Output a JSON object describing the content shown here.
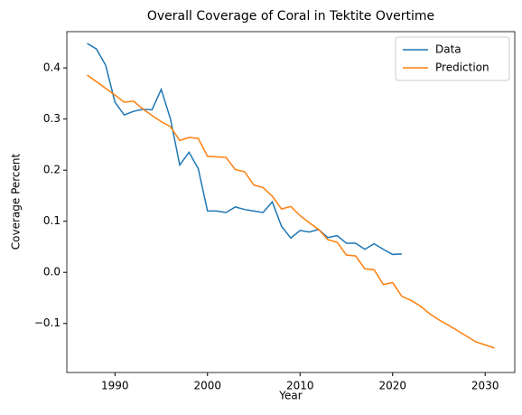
{
  "chart_data": {
    "type": "line",
    "title": "Overall Coverage of Coral in Tektite Overtime",
    "x_label": "Year",
    "y_label": "Coverage Percent",
    "series": [
      {
        "name": "Data",
        "color": "#1f77b4",
        "x": [
          1987,
          1988,
          1989,
          1990,
          1991,
          1992,
          1993,
          1994,
          1995,
          1996,
          1997,
          1998,
          1999,
          2000,
          2001,
          2002,
          2003,
          2004,
          2005,
          2006,
          2007,
          2008,
          2009,
          2010,
          2011,
          2012,
          2013,
          2014,
          2015,
          2016,
          2017,
          2018,
          2019,
          2020,
          2021
        ],
        "values": [
          0.448,
          0.437,
          0.405,
          0.333,
          0.308,
          0.315,
          0.319,
          0.318,
          0.358,
          0.3,
          0.21,
          0.235,
          0.203,
          0.12,
          0.12,
          0.117,
          0.128,
          0.123,
          0.12,
          0.117,
          0.138,
          0.09,
          0.067,
          0.082,
          0.079,
          0.084,
          0.068,
          0.072,
          0.057,
          0.057,
          0.045,
          0.056,
          0.045,
          0.035,
          0.036
        ]
      },
      {
        "name": "Prediction",
        "color": "#ff7f0e",
        "x": [
          1987,
          1988,
          1989,
          1990,
          1991,
          1992,
          1993,
          1994,
          1995,
          1996,
          1997,
          1998,
          1999,
          2000,
          2001,
          2002,
          2003,
          2004,
          2005,
          2006,
          2007,
          2008,
          2009,
          2010,
          2011,
          2012,
          2013,
          2014,
          2015,
          2016,
          2017,
          2018,
          2019,
          2020,
          2021,
          2022,
          2023,
          2024,
          2025,
          2026,
          2027,
          2028,
          2029,
          2030,
          2031
        ],
        "values": [
          0.386,
          0.373,
          0.36,
          0.347,
          0.333,
          0.335,
          0.32,
          0.307,
          0.295,
          0.285,
          0.258,
          0.264,
          0.262,
          0.227,
          0.226,
          0.225,
          0.201,
          0.197,
          0.171,
          0.166,
          0.149,
          0.124,
          0.129,
          0.111,
          0.097,
          0.084,
          0.064,
          0.059,
          0.034,
          0.032,
          0.007,
          0.005,
          -0.024,
          -0.02,
          -0.047,
          -0.055,
          -0.066,
          -0.081,
          -0.093,
          -0.103,
          -0.114,
          -0.125,
          -0.136,
          -0.142,
          -0.148
        ]
      }
    ],
    "xlim": [
      1984.8,
      2033.2
    ],
    "xticks": [
      1990,
      2000,
      2010,
      2020,
      2030
    ],
    "ylim": [
      -0.196,
      0.471
    ],
    "yticks": [
      {
        "value": -0.1,
        "label": "−0.1"
      },
      {
        "value": 0,
        "label": "0.0"
      },
      0.1,
      0.2,
      0.3,
      0.4
    ],
    "legend": "upper right"
  }
}
